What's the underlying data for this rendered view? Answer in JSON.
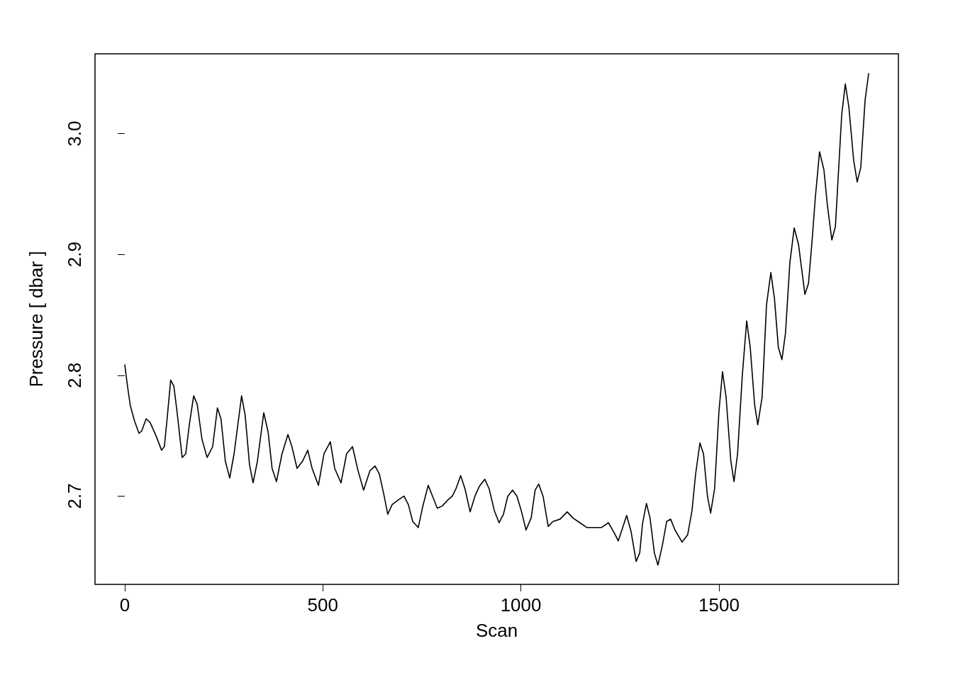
{
  "chart_data": {
    "type": "line",
    "xlabel": "Scan",
    "ylabel": "Pressure [ dbar ]",
    "xlim": [
      -75,
      1953
    ],
    "ylim": [
      2.627,
      3.066
    ],
    "xticks": [
      0,
      500,
      1000,
      1500
    ],
    "yticks": [
      2.7,
      2.8,
      2.9,
      {
        "value": 3.0,
        "label": "3.0"
      }
    ],
    "grid": false,
    "marker": "none",
    "line_style": "solid",
    "series": [
      {
        "color": "#000000",
        "x": [
          0,
          7,
          14,
          25,
          36,
          43,
          54,
          64,
          79,
          93,
          100,
          107,
          116,
          124,
          132,
          145,
          154,
          163,
          174,
          183,
          195,
          208,
          222,
          234,
          243,
          254,
          265,
          276,
          295,
          304,
          315,
          324,
          335,
          351,
          362,
          372,
          383,
          397,
          412,
          422,
          435,
          449,
          462,
          473,
          489,
          503,
          519,
          530,
          546,
          560,
          575,
          589,
          603,
          619,
          632,
          643,
          655,
          664,
          675,
          691,
          705,
          716,
          727,
          741,
          752,
          766,
          777,
          789,
          802,
          816,
          827,
          836,
          848,
          859,
          872,
          884,
          895,
          909,
          920,
          933,
          945,
          956,
          967,
          979,
          990,
          1001,
          1013,
          1026,
          1036,
          1045,
          1056,
          1069,
          1081,
          1099,
          1117,
          1131,
          1149,
          1167,
          1185,
          1203,
          1221,
          1235,
          1246,
          1257,
          1267,
          1278,
          1291,
          1300,
          1307,
          1317,
          1326,
          1337,
          1346,
          1357,
          1368,
          1378,
          1389,
          1407,
          1421,
          1432,
          1441,
          1452,
          1461,
          1471,
          1479,
          1489,
          1500,
          1509,
          1518,
          1530,
          1538,
          1547,
          1559,
          1570,
          1579,
          1590,
          1598,
          1609,
          1620,
          1631,
          1640,
          1650,
          1659,
          1668,
          1679,
          1690,
          1701,
          1717,
          1726,
          1735,
          1743,
          1754,
          1765,
          1774,
          1785,
          1794,
          1801,
          1810,
          1819,
          1828,
          1840,
          1849,
          1858,
          1869,
          1878
        ],
        "values": [
          2.809,
          2.791,
          2.775,
          2.762,
          2.752,
          2.754,
          2.764,
          2.761,
          2.75,
          2.738,
          2.741,
          2.764,
          2.796,
          2.791,
          2.77,
          2.732,
          2.735,
          2.759,
          2.783,
          2.776,
          2.747,
          2.732,
          2.741,
          2.773,
          2.764,
          2.729,
          2.715,
          2.735,
          2.783,
          2.767,
          2.726,
          2.711,
          2.729,
          2.769,
          2.753,
          2.723,
          2.712,
          2.735,
          2.751,
          2.741,
          2.723,
          2.729,
          2.738,
          2.723,
          2.709,
          2.735,
          2.745,
          2.723,
          2.711,
          2.735,
          2.741,
          2.721,
          2.705,
          2.721,
          2.725,
          2.718,
          2.7,
          2.685,
          2.693,
          2.697,
          2.7,
          2.693,
          2.679,
          2.674,
          2.691,
          2.709,
          2.7,
          2.69,
          2.692,
          2.697,
          2.7,
          2.706,
          2.717,
          2.706,
          2.687,
          2.7,
          2.708,
          2.714,
          2.706,
          2.688,
          2.678,
          2.685,
          2.7,
          2.705,
          2.7,
          2.688,
          2.672,
          2.682,
          2.705,
          2.71,
          2.7,
          2.675,
          2.679,
          2.681,
          2.687,
          2.682,
          2.678,
          2.674,
          2.674,
          2.674,
          2.678,
          2.67,
          2.663,
          2.674,
          2.684,
          2.671,
          2.646,
          2.653,
          2.677,
          2.694,
          2.682,
          2.653,
          2.643,
          2.659,
          2.679,
          2.681,
          2.672,
          2.662,
          2.668,
          2.688,
          2.718,
          2.744,
          2.735,
          2.7,
          2.686,
          2.706,
          2.77,
          2.803,
          2.782,
          2.729,
          2.712,
          2.735,
          2.8,
          2.845,
          2.823,
          2.776,
          2.759,
          2.782,
          2.858,
          2.885,
          2.864,
          2.823,
          2.813,
          2.835,
          2.893,
          2.922,
          2.908,
          2.867,
          2.876,
          2.911,
          2.946,
          2.985,
          2.97,
          2.94,
          2.912,
          2.923,
          2.964,
          3.016,
          3.041,
          3.022,
          2.978,
          2.96,
          2.972,
          3.028,
          3.05
        ]
      }
    ]
  }
}
